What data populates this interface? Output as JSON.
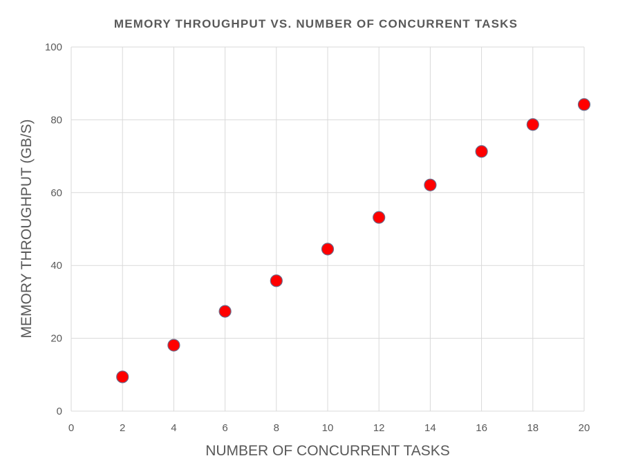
{
  "chart_data": {
    "type": "scatter",
    "title": "MEMORY THROUGHPUT VS. NUMBER OF CONCURRENT TASKS",
    "xlabel": "NUMBER OF CONCURRENT TASKS",
    "ylabel": "MEMORY THROUGHPUT (GB/S)",
    "xlim": [
      0,
      20
    ],
    "ylim": [
      0,
      100
    ],
    "x_ticks": [
      0,
      2,
      4,
      6,
      8,
      10,
      12,
      14,
      16,
      18,
      20
    ],
    "y_ticks": [
      0,
      20,
      40,
      60,
      80,
      100
    ],
    "grid": true,
    "legend": "none",
    "series": [
      {
        "color": "#ff0000",
        "points": [
          {
            "x": 2,
            "y": 9.4
          },
          {
            "x": 4,
            "y": 18.1
          },
          {
            "x": 6,
            "y": 27.4
          },
          {
            "x": 8,
            "y": 35.8
          },
          {
            "x": 10,
            "y": 44.5
          },
          {
            "x": 12,
            "y": 53.2
          },
          {
            "x": 14,
            "y": 62.1
          },
          {
            "x": 16,
            "y": 71.3
          },
          {
            "x": 18,
            "y": 78.7
          },
          {
            "x": 20,
            "y": 84.2
          }
        ]
      }
    ]
  }
}
